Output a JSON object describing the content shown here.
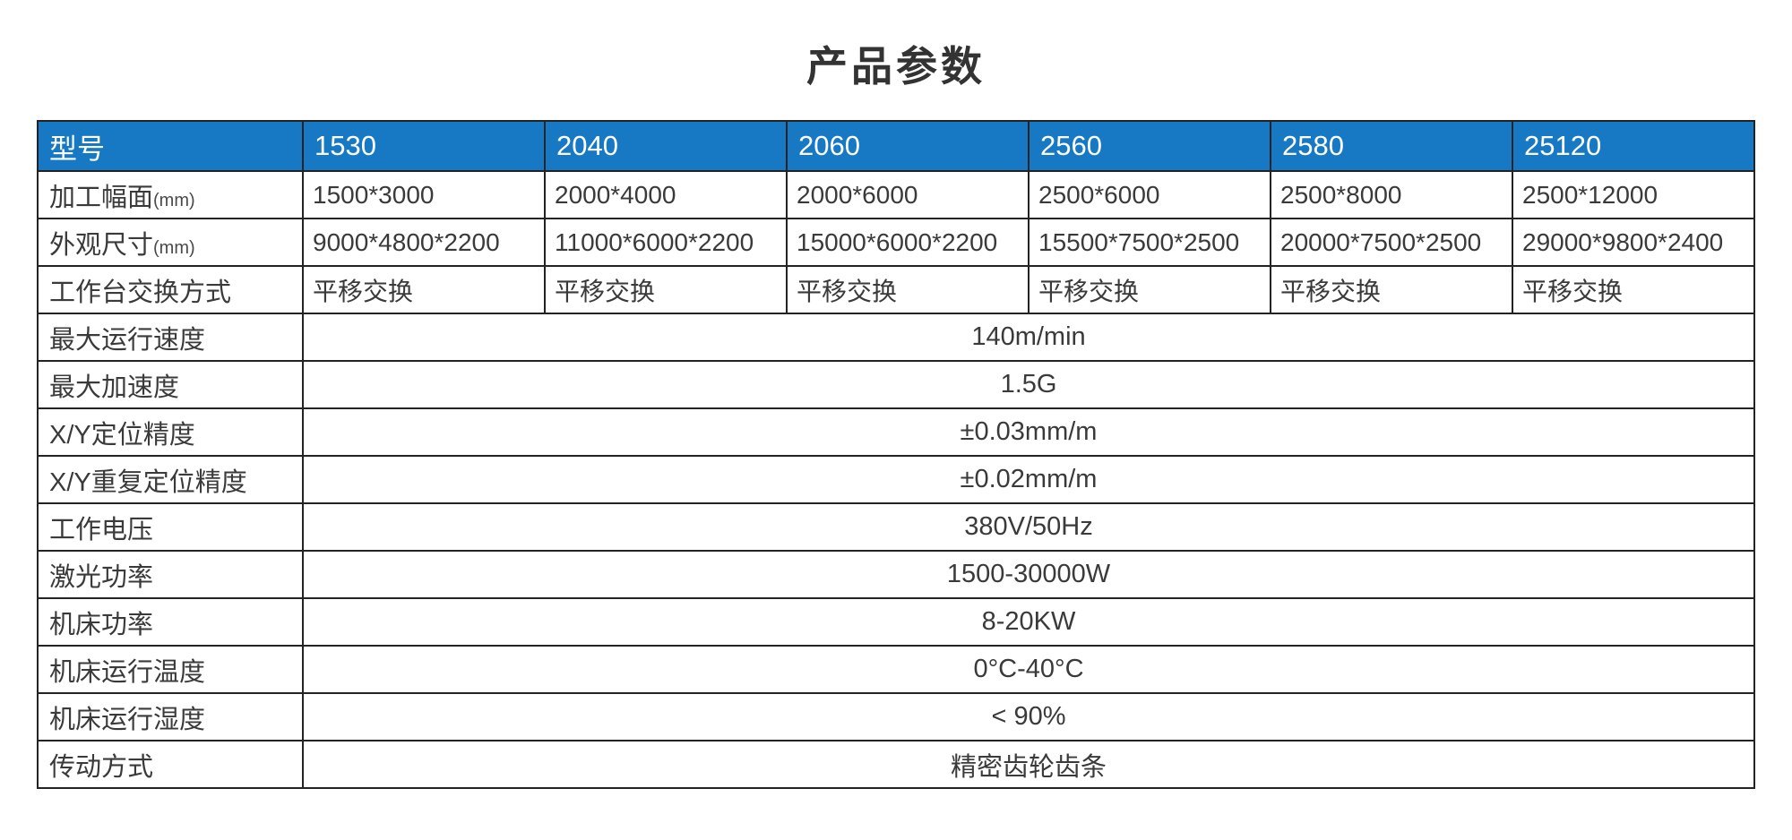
{
  "page": {
    "title": "产品参数"
  },
  "table": {
    "header": {
      "label": "型号",
      "models": [
        "1530",
        "2040",
        "2060",
        "2560",
        "2580",
        "25120"
      ]
    },
    "per_model_rows": [
      {
        "label": "加工幅面",
        "label_suffix": "(mm)",
        "values": [
          "1500*3000",
          "2000*4000",
          "2000*6000",
          "2500*6000",
          "2500*8000",
          "2500*12000"
        ]
      },
      {
        "label": "外观尺寸",
        "label_suffix": "(mm)",
        "values": [
          "9000*4800*2200",
          "11000*6000*2200",
          "15000*6000*2200",
          "15500*7500*2500",
          "20000*7500*2500",
          "29000*9800*2400"
        ]
      },
      {
        "label": "工作台交换方式",
        "label_suffix": "",
        "values": [
          "平移交换",
          "平移交换",
          "平移交换",
          "平移交换",
          "平移交换",
          "平移交换"
        ]
      }
    ],
    "merged_rows": [
      {
        "label": "最大运行速度",
        "value": "140m/min"
      },
      {
        "label": "最大加速度",
        "value": "1.5G"
      },
      {
        "label": "X/Y定位精度",
        "value": "±0.03mm/m"
      },
      {
        "label": "X/Y重复定位精度",
        "value": "±0.02mm/m"
      },
      {
        "label": "工作电压",
        "value": "380V/50Hz"
      },
      {
        "label": "激光功率",
        "value": "1500-30000W"
      },
      {
        "label": "机床功率",
        "value": "8-20KW"
      },
      {
        "label": "机床运行温度",
        "value": "0°C-40°C"
      },
      {
        "label": "机床运行湿度",
        "value": "< 90%"
      },
      {
        "label": "传动方式",
        "value": "精密齿轮齿条"
      }
    ],
    "colors": {
      "header_bg": "#1779c3",
      "header_text": "#ffffff",
      "border": "#232323",
      "body_text": "#3a3a3a"
    }
  }
}
